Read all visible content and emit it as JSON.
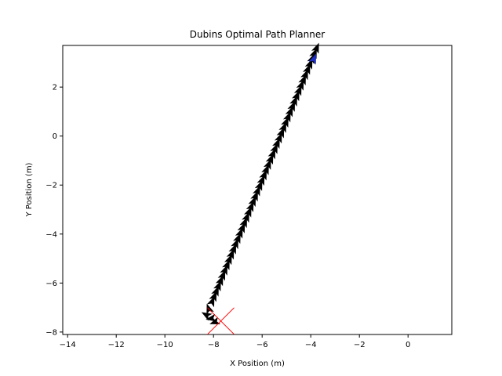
{
  "chart_data": {
    "type": "scatter",
    "title": "Dubins Optimal Path Planner",
    "xlabel": "X Position (m)",
    "ylabel": "Y Position (m)",
    "xlim": [
      -14.2,
      1.8
    ],
    "ylim": [
      -8.1,
      3.7
    ],
    "xticks": [
      -14,
      -12,
      -10,
      -8,
      -6,
      -4,
      -2,
      0
    ],
    "yticks": [
      -8,
      -6,
      -4,
      -2,
      0,
      2
    ],
    "grid": false,
    "start": {
      "x": -3.8,
      "y": 3.6,
      "marker": "arrow",
      "color": "#1f2fbf"
    },
    "goal": {
      "x": -7.7,
      "y": -7.55,
      "marker": "x",
      "color": "#ff0000"
    },
    "path_start": {
      "x": -3.75,
      "y": 3.6
    },
    "path_end": {
      "x": -8.05,
      "y": -6.75
    },
    "final_arrows": [
      {
        "x": -8.2,
        "y": -7.05,
        "heading_deg": 110
      },
      {
        "x": -8.3,
        "y": -7.3,
        "heading_deg": 150
      },
      {
        "x": -8.1,
        "y": -7.45,
        "heading_deg": 190
      },
      {
        "x": -7.95,
        "y": -7.6,
        "heading_deg": 200
      }
    ],
    "arrow_color": "#000000"
  }
}
